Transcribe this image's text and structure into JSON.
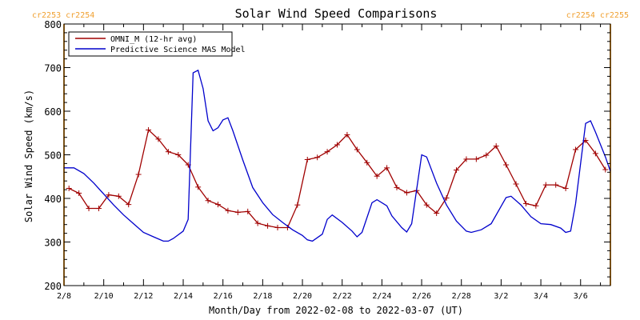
{
  "chart_data": {
    "type": "line",
    "title": "Solar Wind Speed Comparisons",
    "xlabel": "Month/Day from 2022-02-08 to 2022-03-07 (UT)",
    "ylabel": "Solar Wind Speed (km/s)",
    "ylim": [
      200,
      800
    ],
    "xlim": [
      "2022-02-08T00:00",
      "2022-03-07T12:00"
    ],
    "x_ticks": [
      "2/8",
      "2/10",
      "2/12",
      "2/14",
      "2/16",
      "2/18",
      "2/20",
      "2/22",
      "2/24",
      "2/26",
      "2/28",
      "3/2",
      "3/4",
      "3/6"
    ],
    "y_ticks": [
      200,
      300,
      400,
      500,
      600,
      700,
      800
    ],
    "legend_position": "top-left",
    "corner_labels": {
      "left": "cr2253 cr2254",
      "right": "cr2254 cr2255"
    },
    "carrington_boundaries": [
      "2022-02-08T00:00",
      "2022-03-07T12:00"
    ],
    "colors": {
      "omni": "#a00000",
      "model": "#0000cc",
      "boundary": "#f0a030",
      "axis": "#000000"
    },
    "series": [
      {
        "name": "OMNI_M (12-hr avg)",
        "marker": "plus",
        "points": [
          [
            "2022-02-08T06:00",
            423
          ],
          [
            "2022-02-08T18:00",
            412
          ],
          [
            "2022-02-09T06:00",
            377
          ],
          [
            "2022-02-09T18:00",
            377
          ],
          [
            "2022-02-10T06:00",
            408
          ],
          [
            "2022-02-10T18:00",
            405
          ],
          [
            "2022-02-11T06:00",
            386
          ],
          [
            "2022-02-11T18:00",
            455
          ],
          [
            "2022-02-12T06:00",
            557
          ],
          [
            "2022-02-12T18:00",
            536
          ],
          [
            "2022-02-13T06:00",
            507
          ],
          [
            "2022-02-13T18:00",
            500
          ],
          [
            "2022-02-14T06:00",
            477
          ],
          [
            "2022-02-14T18:00",
            426
          ],
          [
            "2022-02-15T06:00",
            395
          ],
          [
            "2022-02-15T18:00",
            386
          ],
          [
            "2022-02-16T06:00",
            372
          ],
          [
            "2022-02-16T18:00",
            368
          ],
          [
            "2022-02-17T06:00",
            370
          ],
          [
            "2022-02-17T18:00",
            343
          ],
          [
            "2022-02-18T06:00",
            337
          ],
          [
            "2022-02-18T18:00",
            333
          ],
          [
            "2022-02-19T06:00",
            333
          ],
          [
            "2022-02-19T18:00",
            385
          ],
          [
            "2022-02-20T06:00",
            489
          ],
          [
            "2022-02-20T18:00",
            494
          ],
          [
            "2022-02-21T06:00",
            507
          ],
          [
            "2022-02-21T18:00",
            523
          ],
          [
            "2022-02-22T06:00",
            546
          ],
          [
            "2022-02-22T18:00",
            512
          ],
          [
            "2022-02-23T06:00",
            482
          ],
          [
            "2022-02-23T18:00",
            451
          ],
          [
            "2022-02-24T06:00",
            470
          ],
          [
            "2022-02-24T18:00",
            425
          ],
          [
            "2022-02-25T06:00",
            413
          ],
          [
            "2022-02-25T18:00",
            418
          ],
          [
            "2022-02-26T06:00",
            385
          ],
          [
            "2022-02-26T18:00",
            366
          ],
          [
            "2022-02-27T06:00",
            401
          ],
          [
            "2022-02-27T18:00",
            465
          ],
          [
            "2022-02-28T06:00",
            490
          ],
          [
            "2022-02-28T18:00",
            490
          ],
          [
            "2022-03-01T06:00",
            499
          ],
          [
            "2022-03-01T18:00",
            520
          ],
          [
            "2022-03-02T06:00",
            477
          ],
          [
            "2022-03-02T18:00",
            433
          ],
          [
            "2022-03-03T06:00",
            388
          ],
          [
            "2022-03-03T18:00",
            383
          ],
          [
            "2022-03-04T06:00",
            431
          ],
          [
            "2022-03-04T18:00",
            431
          ],
          [
            "2022-03-05T06:00",
            423
          ],
          [
            "2022-03-05T18:00",
            512
          ],
          [
            "2022-03-06T06:00",
            533
          ],
          [
            "2022-03-06T18:00",
            503
          ],
          [
            "2022-03-07T06:00",
            466
          ]
        ]
      },
      {
        "name": "Predictive Science MAS Model",
        "marker": "none",
        "points": [
          [
            "2022-02-08T00:00",
            470
          ],
          [
            "2022-02-08T12:00",
            470
          ],
          [
            "2022-02-09T00:00",
            457
          ],
          [
            "2022-02-09T12:00",
            435
          ],
          [
            "2022-02-10T00:00",
            410
          ],
          [
            "2022-02-10T12:00",
            385
          ],
          [
            "2022-02-11T00:00",
            362
          ],
          [
            "2022-02-11T12:00",
            342
          ],
          [
            "2022-02-12T00:00",
            322
          ],
          [
            "2022-02-12T12:00",
            312
          ],
          [
            "2022-02-13T00:00",
            302
          ],
          [
            "2022-02-13T06:00",
            302
          ],
          [
            "2022-02-13T12:00",
            308
          ],
          [
            "2022-02-14T00:00",
            325
          ],
          [
            "2022-02-14T06:00",
            352
          ],
          [
            "2022-02-14T12:00",
            688
          ],
          [
            "2022-02-14T18:00",
            694
          ],
          [
            "2022-02-15T00:00",
            652
          ],
          [
            "2022-02-15T06:00",
            578
          ],
          [
            "2022-02-15T12:00",
            555
          ],
          [
            "2022-02-15T18:00",
            562
          ],
          [
            "2022-02-16T00:00",
            580
          ],
          [
            "2022-02-16T06:00",
            585
          ],
          [
            "2022-02-16T12:00",
            555
          ],
          [
            "2022-02-17T00:00",
            488
          ],
          [
            "2022-02-17T12:00",
            425
          ],
          [
            "2022-02-18T00:00",
            390
          ],
          [
            "2022-02-18T12:00",
            363
          ],
          [
            "2022-02-19T00:00",
            345
          ],
          [
            "2022-02-19T12:00",
            328
          ],
          [
            "2022-02-20T00:00",
            315
          ],
          [
            "2022-02-20T06:00",
            305
          ],
          [
            "2022-02-20T12:00",
            302
          ],
          [
            "2022-02-21T00:00",
            318
          ],
          [
            "2022-02-21T06:00",
            352
          ],
          [
            "2022-02-21T12:00",
            362
          ],
          [
            "2022-02-22T00:00",
            345
          ],
          [
            "2022-02-22T12:00",
            325
          ],
          [
            "2022-02-22T18:00",
            312
          ],
          [
            "2022-02-23T00:00",
            322
          ],
          [
            "2022-02-23T12:00",
            390
          ],
          [
            "2022-02-23T18:00",
            397
          ],
          [
            "2022-02-24T06:00",
            383
          ],
          [
            "2022-02-24T12:00",
            360
          ],
          [
            "2022-02-25T00:00",
            333
          ],
          [
            "2022-02-25T06:00",
            323
          ],
          [
            "2022-02-25T12:00",
            342
          ],
          [
            "2022-02-26T00:00",
            500
          ],
          [
            "2022-02-26T06:00",
            495
          ],
          [
            "2022-02-26T18:00",
            435
          ],
          [
            "2022-02-27T06:00",
            385
          ],
          [
            "2022-02-27T18:00",
            348
          ],
          [
            "2022-02-28T06:00",
            325
          ],
          [
            "2022-02-28T12:00",
            322
          ],
          [
            "2022-03-01T00:00",
            328
          ],
          [
            "2022-03-01T12:00",
            342
          ],
          [
            "2022-03-02T00:00",
            382
          ],
          [
            "2022-03-02T06:00",
            402
          ],
          [
            "2022-03-02T12:00",
            405
          ],
          [
            "2022-03-03T00:00",
            385
          ],
          [
            "2022-03-03T12:00",
            358
          ],
          [
            "2022-03-04T00:00",
            342
          ],
          [
            "2022-03-04T12:00",
            340
          ],
          [
            "2022-03-05T00:00",
            332
          ],
          [
            "2022-03-05T06:00",
            322
          ],
          [
            "2022-03-05T12:00",
            325
          ],
          [
            "2022-03-05T18:00",
            388
          ],
          [
            "2022-03-06T06:00",
            572
          ],
          [
            "2022-03-06T12:00",
            578
          ],
          [
            "2022-03-06T18:00",
            552
          ],
          [
            "2022-03-07T06:00",
            495
          ],
          [
            "2022-03-07T12:00",
            462
          ]
        ]
      }
    ]
  }
}
